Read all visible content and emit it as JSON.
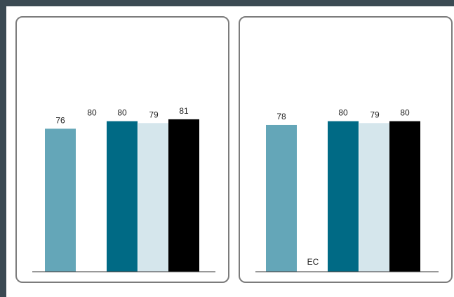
{
  "chart_data": [
    {
      "type": "bar",
      "categories": [
        "",
        "",
        "",
        "",
        ""
      ],
      "values": [
        76,
        80,
        80,
        79,
        81
      ],
      "value_labels": [
        "76",
        "80",
        "80",
        "79",
        "81"
      ],
      "colors": [
        "#64a6b8",
        "#ffffff",
        "#006a85",
        "#d5e6ec",
        "#000000"
      ],
      "ylim": [
        0,
        100
      ],
      "grid": false,
      "legend": "none"
    },
    {
      "type": "bar",
      "categories": [
        "",
        "EC",
        "",
        "",
        ""
      ],
      "values": [
        78,
        null,
        80,
        79,
        80
      ],
      "value_labels": [
        "78",
        "",
        "80",
        "79",
        "80"
      ],
      "colors": [
        "#64a6b8",
        "#ffffff",
        "#006a85",
        "#d5e6ec",
        "#000000"
      ],
      "ylim": [
        0,
        100
      ],
      "grid": false,
      "legend": "none"
    }
  ]
}
